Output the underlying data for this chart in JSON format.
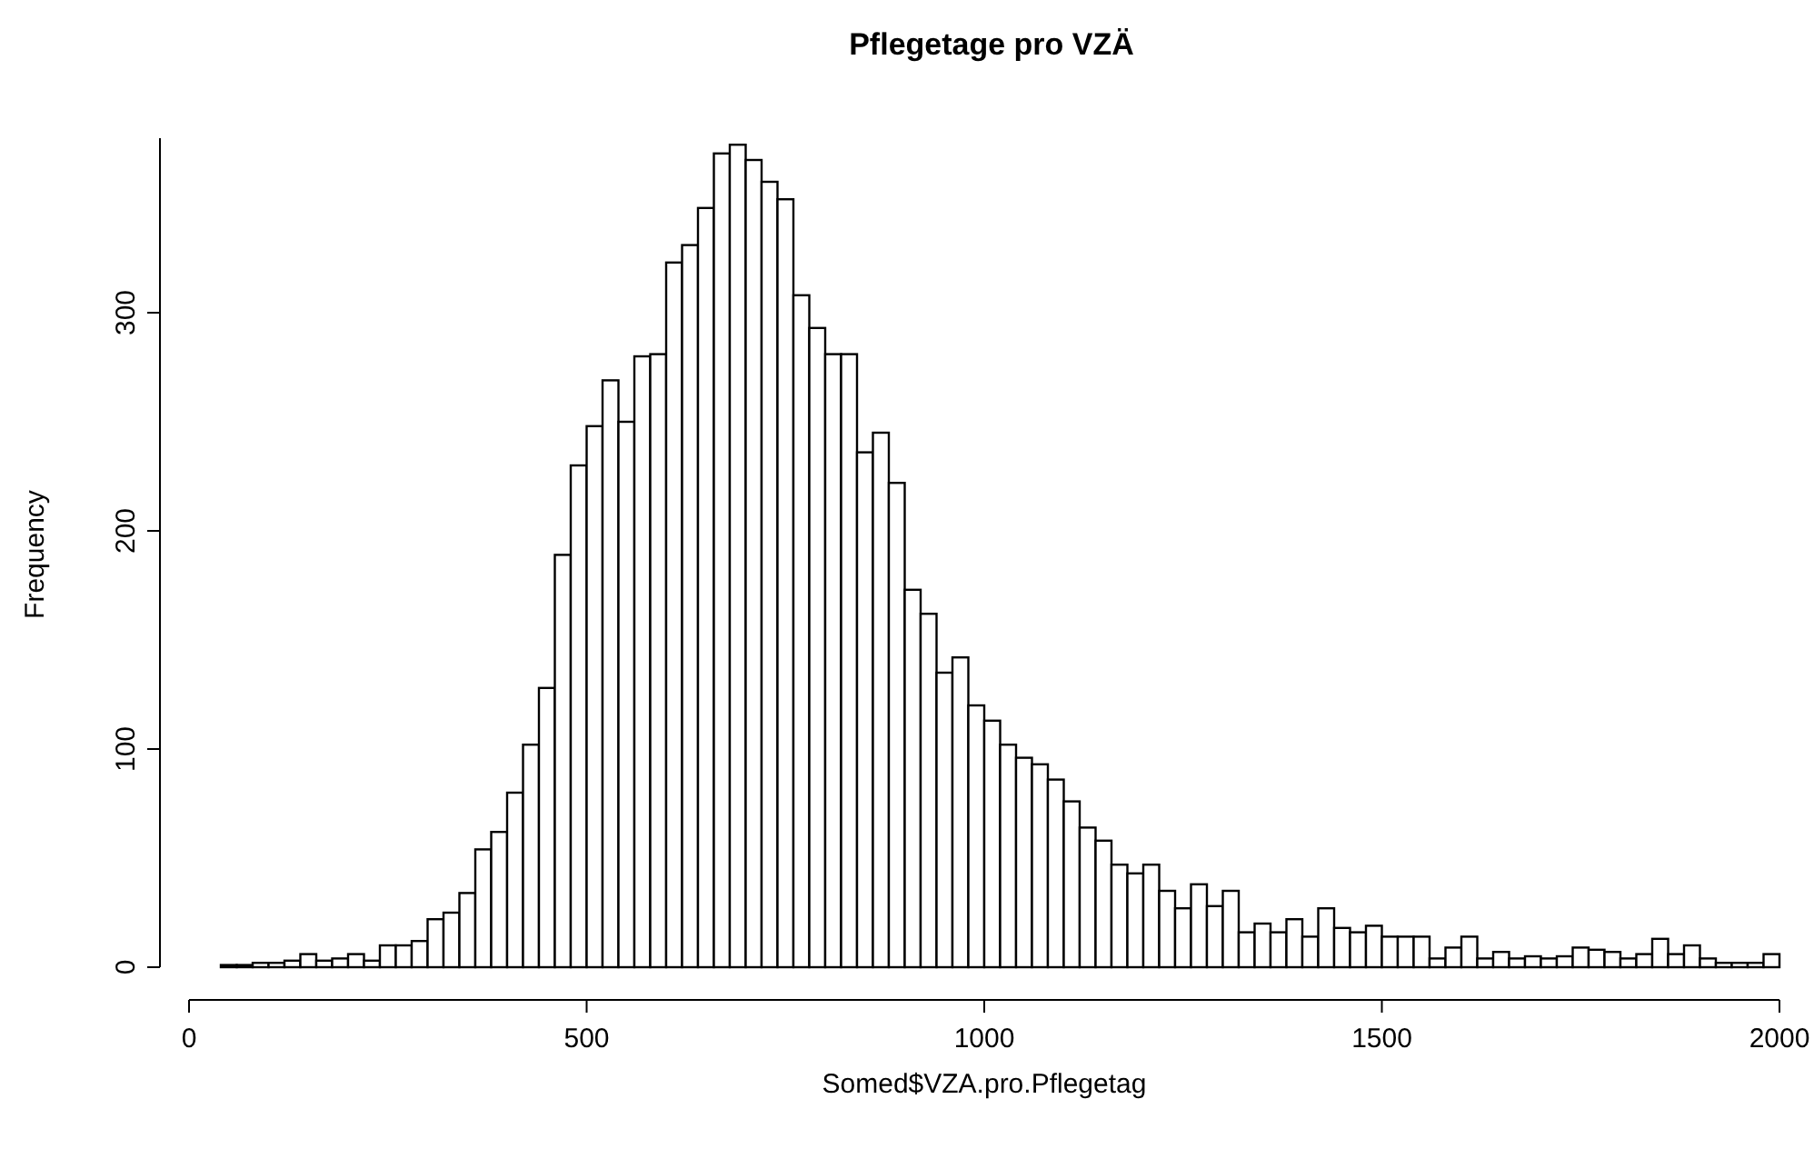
{
  "chart_data": {
    "type": "histogram",
    "title": "Pflegetage pro VZÄ",
    "xlabel": "Somed$VZA.pro.Pflegetag",
    "ylabel": "Frequency",
    "bins": [
      40,
      60,
      80,
      100,
      120,
      140,
      160,
      180,
      200,
      220,
      240,
      260,
      280,
      300,
      320,
      340,
      360,
      380,
      400,
      420,
      440,
      460,
      480,
      500,
      520,
      540,
      560,
      580,
      600,
      620,
      640,
      660,
      680,
      700,
      720,
      740,
      760,
      780,
      800,
      820,
      840,
      860,
      880,
      900,
      920,
      940,
      960,
      980,
      1000,
      1020,
      1040,
      1060,
      1080,
      1100,
      1120,
      1140,
      1160,
      1180,
      1200,
      1220,
      1240,
      1260,
      1280,
      1300,
      1320,
      1340,
      1360,
      1380,
      1400,
      1420,
      1440,
      1460,
      1480,
      1500,
      1520,
      1540,
      1560,
      1580,
      1600,
      1620,
      1640,
      1660,
      1680,
      1700,
      1720,
      1740,
      1760,
      1780,
      1800,
      1820,
      1840,
      1860,
      1880,
      1900,
      1920,
      1940,
      1960,
      1980,
      2000
    ],
    "values": [
      1,
      1,
      2,
      2,
      3,
      6,
      3,
      4,
      6,
      3,
      10,
      10,
      12,
      22,
      25,
      34,
      54,
      62,
      80,
      102,
      128,
      189,
      230,
      248,
      269,
      250,
      280,
      281,
      323,
      331,
      348,
      373,
      377,
      370,
      360,
      352,
      308,
      293,
      281,
      281,
      236,
      245,
      222,
      173,
      162,
      135,
      142,
      120,
      113,
      102,
      96,
      93,
      86,
      76,
      64,
      58,
      47,
      43,
      47,
      35,
      27,
      38,
      28,
      35,
      16,
      20,
      16,
      22,
      14,
      27,
      18,
      16,
      19,
      14,
      14,
      14,
      4,
      9,
      14,
      4,
      7,
      4,
      5,
      4,
      5,
      9,
      8,
      7,
      4,
      6,
      13,
      6,
      10,
      4,
      2,
      2,
      2,
      6
    ],
    "color": "#ffffff",
    "xlim": [
      0,
      2000
    ],
    "ylim": [
      0,
      380
    ],
    "xticks": [
      0,
      500,
      1000,
      1500,
      2000
    ],
    "yticks": [
      0,
      100,
      200,
      300
    ],
    "grid": false
  }
}
